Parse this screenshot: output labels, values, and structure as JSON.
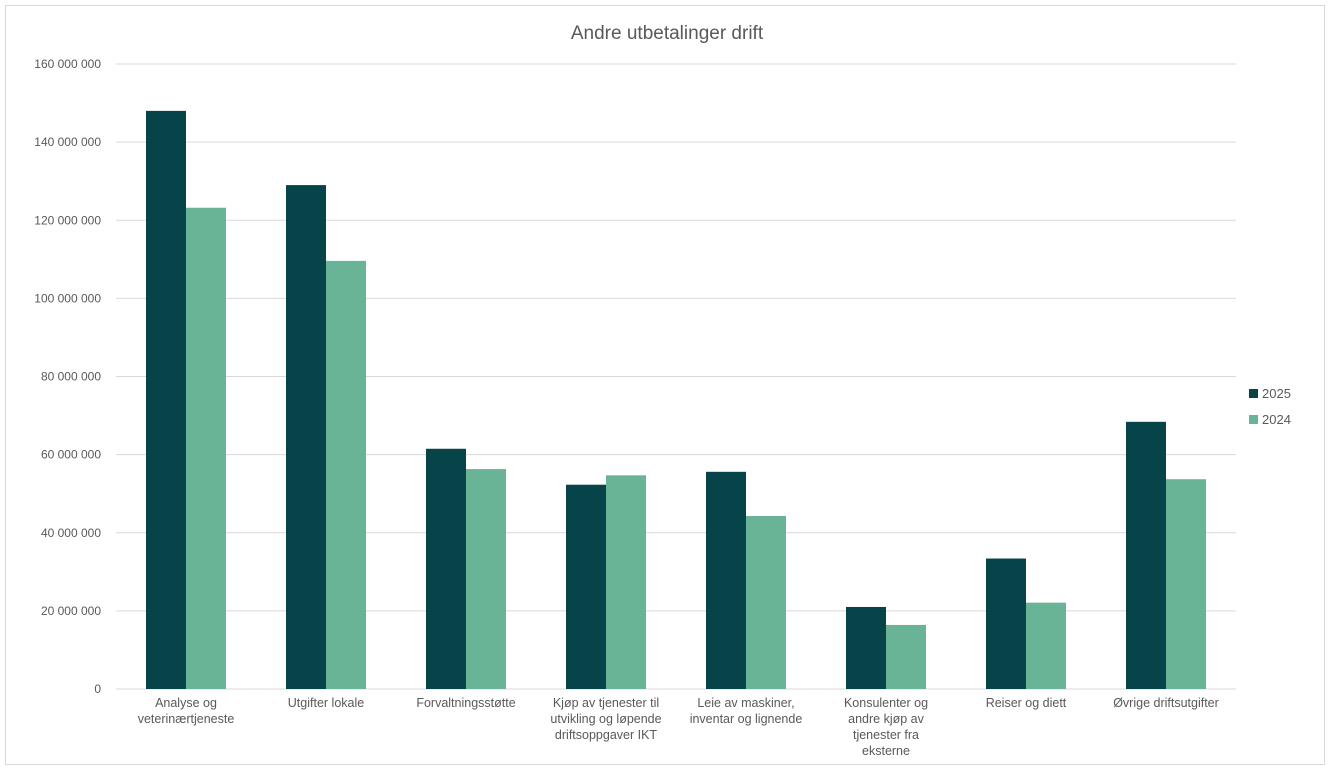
{
  "chart_data": {
    "type": "bar",
    "title": "Andre utbetalinger drift",
    "xlabel": "",
    "ylabel": "",
    "ylim": [
      0,
      160000000
    ],
    "yticks": [
      0,
      20000000,
      40000000,
      60000000,
      80000000,
      100000000,
      120000000,
      140000000,
      160000000
    ],
    "ytick_labels": [
      "0",
      "20 000 000",
      "40 000 000",
      "60 000 000",
      "80 000 000",
      "100 000 000",
      "120 000 000",
      "140 000 000",
      "160 000 000"
    ],
    "grid": true,
    "legend_position": "right",
    "categories": [
      "Analyse og veterinærtjeneste",
      "Utgifter lokale",
      "Forvaltningsstøtte",
      "Kjøp av tjenester til utvikling og løpende driftsoppgaver IKT",
      "Leie av maskiner, inventar og lignende",
      "Konsulenter og andre kjøp av tjenester fra eksterne",
      "Reiser og diett",
      "Øvrige driftsutgifter"
    ],
    "category_label_lines": [
      [
        "Analyse og",
        "veterinærtjeneste"
      ],
      [
        "Utgifter lokale"
      ],
      [
        "Forvaltningsstøtte"
      ],
      [
        "Kjøp av tjenester til",
        "utvikling og løpende",
        "driftsoppgaver IKT"
      ],
      [
        "Leie av maskiner,",
        "inventar og lignende"
      ],
      [
        "Konsulenter og",
        "andre kjøp av",
        "tjenester fra",
        "eksterne"
      ],
      [
        "Reiser og diett"
      ],
      [
        "Øvrige driftsutgifter"
      ]
    ],
    "series": [
      {
        "name": "2025",
        "color": "#07444a",
        "values": [
          148000000,
          129000000,
          61500000,
          52300000,
          55600000,
          21000000,
          33400000,
          68400000
        ]
      },
      {
        "name": "2024",
        "color": "#69b396",
        "values": [
          123200000,
          109600000,
          56300000,
          54700000,
          44300000,
          16400000,
          22100000,
          53700000
        ]
      }
    ]
  }
}
